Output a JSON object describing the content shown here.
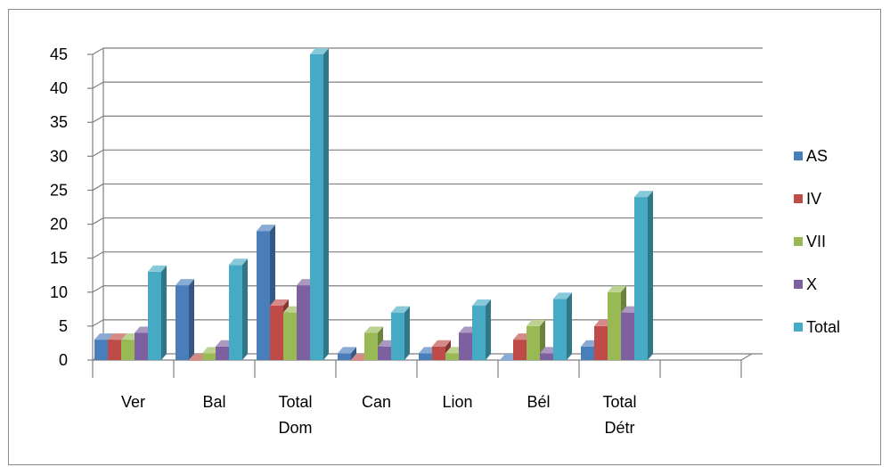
{
  "chart_data": {
    "type": "bar",
    "style": "3d-clustered-column",
    "categories": [
      [
        "Ver"
      ],
      [
        "Bal"
      ],
      [
        "Total",
        "Dom"
      ],
      [
        "Can"
      ],
      [
        "Lion"
      ],
      [
        "Bél"
      ],
      [
        "Total",
        "Détr"
      ],
      [
        ""
      ]
    ],
    "series": [
      {
        "name": "AS",
        "color": "#4a7ebb",
        "values": [
          3,
          11,
          19,
          1,
          1,
          0,
          2,
          null
        ]
      },
      {
        "name": "IV",
        "color": "#be4b48",
        "values": [
          3,
          0,
          8,
          0,
          2,
          3,
          5,
          null
        ]
      },
      {
        "name": "VII",
        "color": "#98b954",
        "values": [
          3,
          1,
          7,
          4,
          1,
          5,
          10,
          null
        ]
      },
      {
        "name": "X",
        "color": "#7d60a0",
        "values": [
          4,
          2,
          11,
          2,
          4,
          1,
          7,
          null
        ]
      },
      {
        "name": "Total",
        "color": "#46aac5",
        "values": [
          13,
          14,
          45,
          7,
          8,
          9,
          24,
          null
        ]
      }
    ],
    "ylim": [
      0,
      45
    ],
    "yticks": [
      0,
      5,
      10,
      15,
      20,
      25,
      30,
      35,
      40,
      45
    ],
    "grid": true,
    "legend": "right"
  }
}
